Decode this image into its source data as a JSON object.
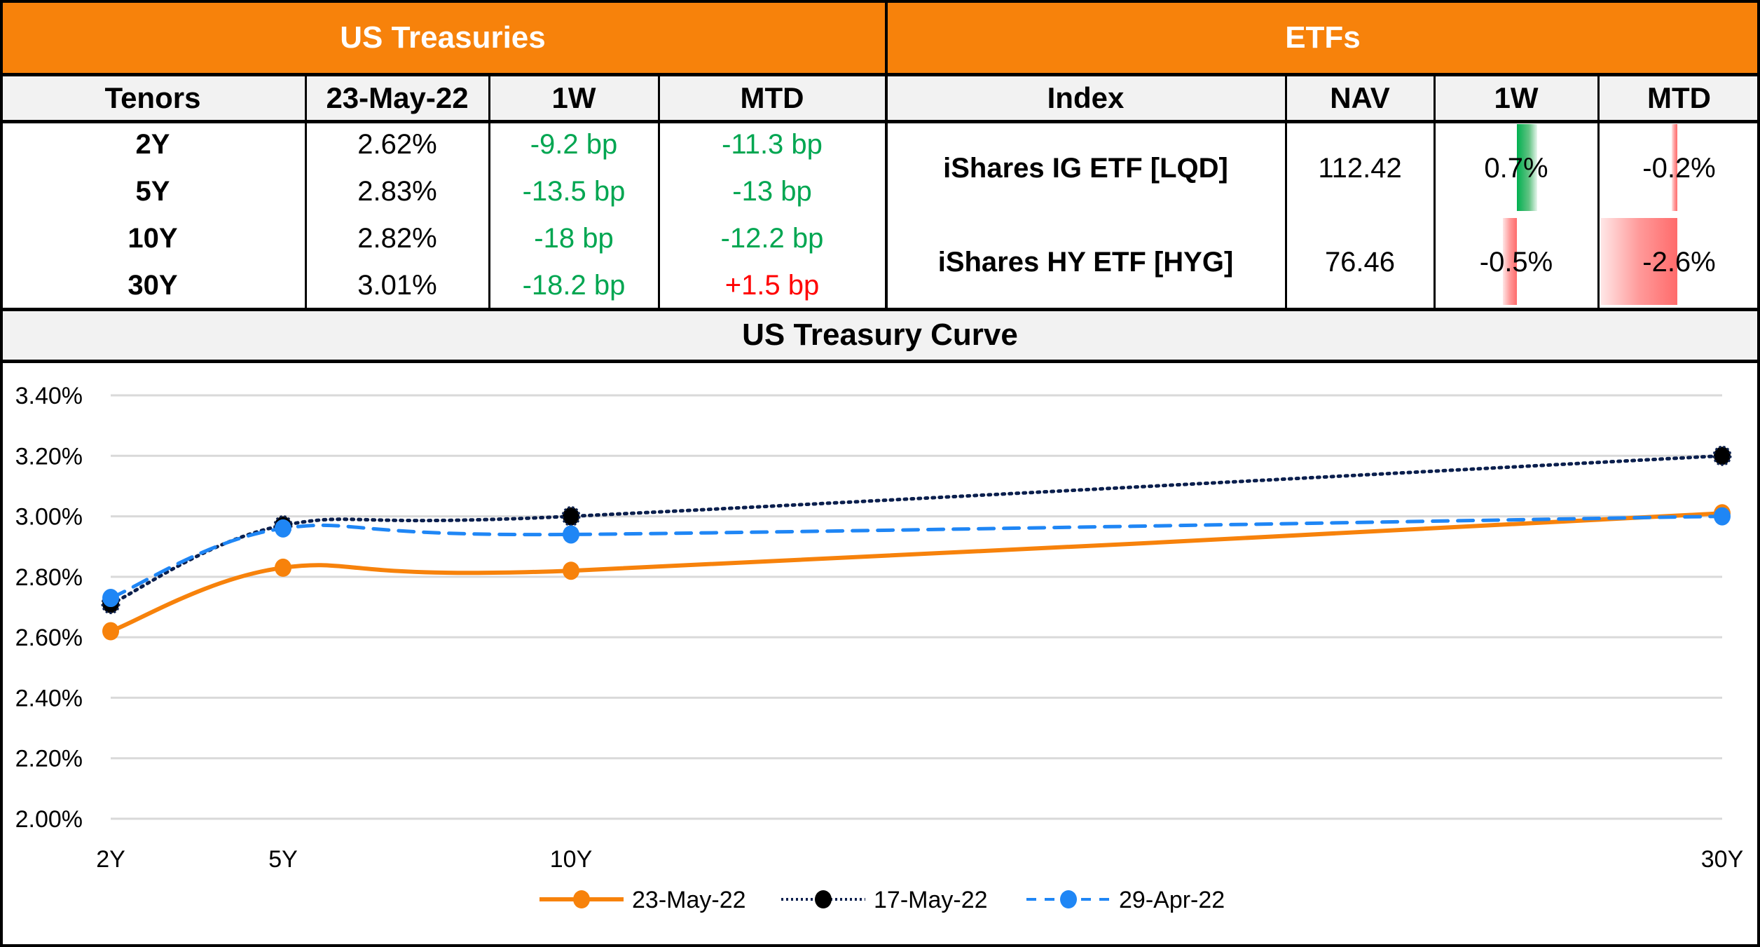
{
  "treasuries": {
    "title": "US Treasuries",
    "columns": [
      "Tenors",
      "23-May-22",
      "1W",
      "MTD"
    ],
    "rows": [
      {
        "tenor": "2Y",
        "yield": "2.62%",
        "w1": "-9.2 bp",
        "mtd": "-11.3 bp",
        "w1_dir": "down",
        "mtd_dir": "down"
      },
      {
        "tenor": "5Y",
        "yield": "2.83%",
        "w1": "-13.5 bp",
        "mtd": "-13 bp",
        "w1_dir": "down",
        "mtd_dir": "down"
      },
      {
        "tenor": "10Y",
        "yield": "2.82%",
        "w1": "-18 bp",
        "mtd": "-12.2 bp",
        "w1_dir": "down",
        "mtd_dir": "down"
      },
      {
        "tenor": "30Y",
        "yield": "3.01%",
        "w1": "-18.2 bp",
        "mtd": "+1.5 bp",
        "w1_dir": "down",
        "mtd_dir": "up"
      }
    ]
  },
  "etfs": {
    "title": "ETFs",
    "columns": [
      "Index",
      "NAV",
      "1W",
      "MTD"
    ],
    "rows": [
      {
        "name": "iShares IG ETF [LQD]",
        "nav": "112.42",
        "w1": "0.7%",
        "mtd": "-0.2%",
        "w1_value": 0.7,
        "mtd_value": -0.2
      },
      {
        "name": "iShares HY ETF [HYG]",
        "nav": "76.46",
        "w1": "-0.5%",
        "mtd": "-2.6%",
        "w1_value": -0.5,
        "mtd_value": -2.6
      }
    ]
  },
  "colors": {
    "header_orange": "#f7820b",
    "positive_green": "#00a651",
    "negative_red": "#ff0000",
    "series_23may": "#f7820b",
    "series_17may": "#0b1f4d",
    "series_29apr": "#1f86f5"
  },
  "chart_data": {
    "type": "line",
    "title": "US Treasury Curve",
    "x": [
      "2Y",
      "5Y",
      "10Y",
      "30Y"
    ],
    "x_numeric_years": [
      2,
      5,
      10,
      30
    ],
    "xlabel": "",
    "ylabel": "",
    "ylim": [
      2.0,
      3.4
    ],
    "yticks": [
      "2.00%",
      "2.20%",
      "2.40%",
      "2.60%",
      "2.80%",
      "3.00%",
      "3.20%",
      "3.40%"
    ],
    "ytick_values": [
      2.0,
      2.2,
      2.4,
      2.6,
      2.8,
      3.0,
      3.2,
      3.4
    ],
    "grid": true,
    "legend_position": "bottom",
    "series": [
      {
        "name": "23-May-22",
        "values": [
          2.62,
          2.83,
          2.82,
          3.01
        ],
        "style": "solid",
        "smooth": true
      },
      {
        "name": "17-May-22",
        "values": [
          2.71,
          2.97,
          3.0,
          3.2
        ],
        "style": "dotted",
        "smooth": true
      },
      {
        "name": "29-Apr-22",
        "values": [
          2.73,
          2.96,
          2.94,
          3.0
        ],
        "style": "dashed",
        "smooth": true
      }
    ]
  }
}
